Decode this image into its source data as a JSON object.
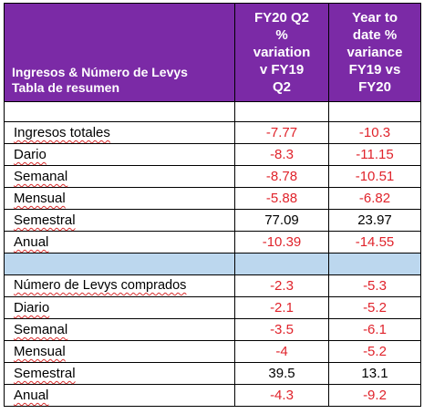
{
  "header": {
    "title_line1": "Ingresos & Número de Levys",
    "title_line2": "Tabla de resumen",
    "col2_lines": [
      "FY20 Q2",
      "%",
      "variation",
      "v FY19",
      "Q2"
    ],
    "col3_lines": [
      "Year to",
      "date %",
      "variance",
      "FY19 vs",
      "FY20"
    ]
  },
  "section1": {
    "rows": [
      {
        "label": "Ingresos totales",
        "v1": "-7.77",
        "v2": "-10.3",
        "v1_neg": true,
        "v2_neg": true
      },
      {
        "label": "Dario",
        "v1": "-8.3",
        "v2": "-11.15",
        "v1_neg": true,
        "v2_neg": true
      },
      {
        "label": "Semanal",
        "v1": "-8.78",
        "v2": "-10.51",
        "v1_neg": true,
        "v2_neg": true
      },
      {
        "label": "Mensual",
        "v1": "-5.88",
        "v2": "-6.82",
        "v1_neg": true,
        "v2_neg": true
      },
      {
        "label": "Semestral",
        "v1": "77.09",
        "v2": "23.97",
        "v1_neg": false,
        "v2_neg": false
      },
      {
        "label": "Anual",
        "v1": "-10.39",
        "v2": "-14.55",
        "v1_neg": true,
        "v2_neg": true
      }
    ]
  },
  "section2": {
    "rows": [
      {
        "label": "Número de Levys comprados",
        "v1": "-2.3",
        "v2": "-5.3",
        "v1_neg": true,
        "v2_neg": true
      },
      {
        "label": "Diario",
        "v1": "-2.1",
        "v2": "-5.2",
        "v1_neg": true,
        "v2_neg": true
      },
      {
        "label": "Semanal",
        "v1": "-3.5",
        "v2": "-6.1",
        "v1_neg": true,
        "v2_neg": true
      },
      {
        "label": "Mensual",
        "v1": "-4",
        "v2": "-5.2",
        "v1_neg": true,
        "v2_neg": true
      },
      {
        "label": "Semestral",
        "v1": "39.5",
        "v2": "13.1",
        "v1_neg": false,
        "v2_neg": false
      },
      {
        "label": "Anual",
        "v1": "-4.3",
        "v2": "-9.2",
        "v1_neg": true,
        "v2_neg": true
      }
    ]
  },
  "colors": {
    "header_bg": "#7b2aa6",
    "band_bg": "#bcd7ee",
    "negative": "#e0232b"
  }
}
